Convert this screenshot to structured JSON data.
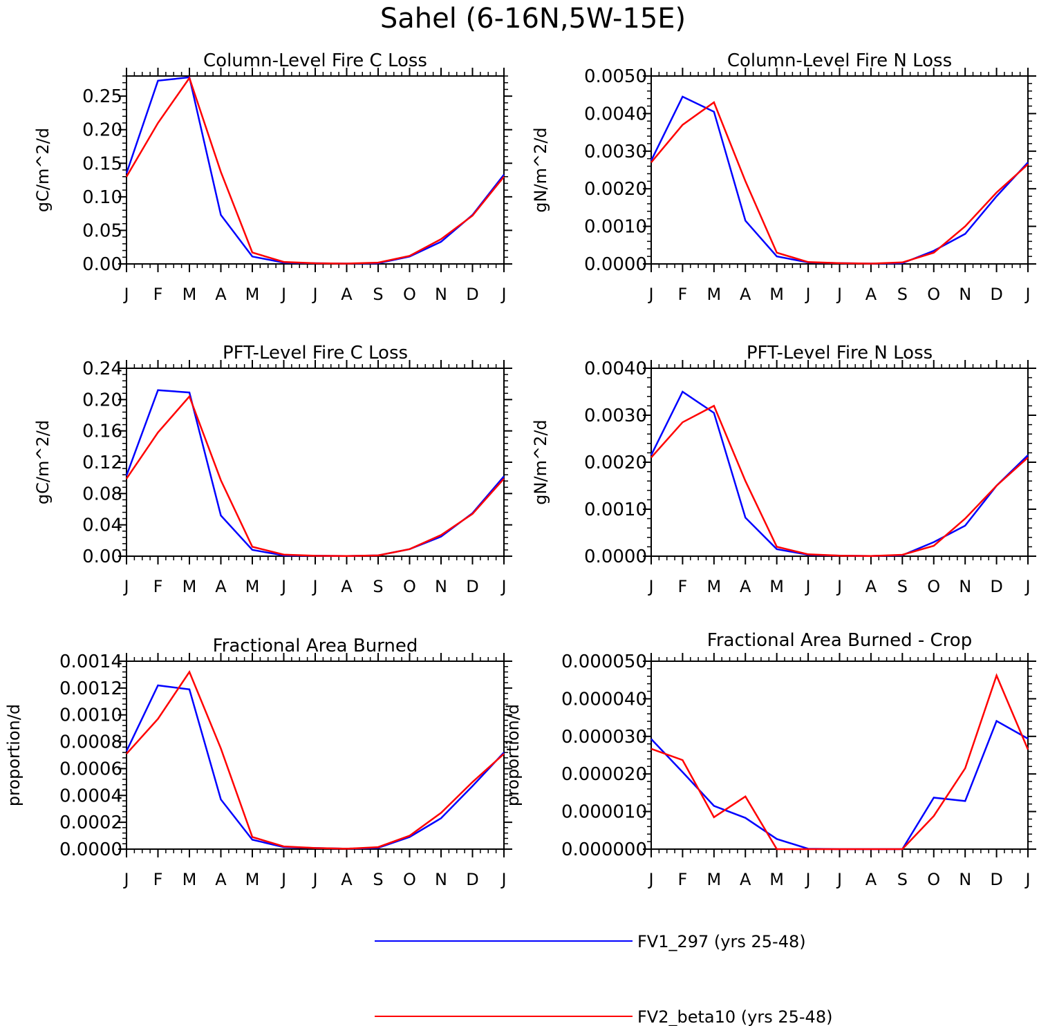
{
  "figure_title": "Sahel (6-16N,5W-15E)",
  "legend": [
    {
      "label": "FV1_297 (yrs 25-48)",
      "color": "#0000ff"
    },
    {
      "label": "FV2_beta10 (yrs 25-48)",
      "color": "#ff0000"
    }
  ],
  "chart_data": [
    {
      "type": "line",
      "title": "Column-Level Fire C Loss",
      "ylabel": "gC/m^2/d",
      "categories": [
        "J",
        "F",
        "M",
        "A",
        "M",
        "J",
        "J",
        "A",
        "S",
        "O",
        "N",
        "D",
        "J"
      ],
      "ylim": [
        0,
        0.28
      ],
      "yticks": [
        0,
        0.05,
        0.1,
        0.15,
        0.2,
        0.25
      ],
      "ytick_labels": [
        "0.00",
        "0.05",
        "0.10",
        "0.15",
        "0.20",
        "0.25"
      ],
      "series": [
        {
          "name": "FV1_297 (yrs 25-48)",
          "color": "#0000ff",
          "values": [
            0.135,
            0.273,
            0.278,
            0.073,
            0.011,
            0.002,
            0.001,
            0.0005,
            0.001,
            0.011,
            0.033,
            0.073,
            0.133
          ]
        },
        {
          "name": "FV2_beta10 (yrs 25-48)",
          "color": "#ff0000",
          "values": [
            0.13,
            0.21,
            0.277,
            0.137,
            0.017,
            0.003,
            0.001,
            0.0005,
            0.002,
            0.012,
            0.037,
            0.072,
            0.13
          ]
        }
      ]
    },
    {
      "type": "line",
      "title": "Column-Level Fire N Loss",
      "ylabel": "gN/m^2/d",
      "categories": [
        "J",
        "F",
        "M",
        "A",
        "M",
        "J",
        "J",
        "A",
        "S",
        "O",
        "N",
        "D",
        "J"
      ],
      "ylim": [
        0,
        0.005
      ],
      "yticks": [
        0,
        0.001,
        0.002,
        0.003,
        0.004,
        0.005
      ],
      "ytick_labels": [
        "0.0000",
        "0.0010",
        "0.0020",
        "0.0030",
        "0.0040",
        "0.0050"
      ],
      "series": [
        {
          "name": "FV1_297 (yrs 25-48)",
          "color": "#0000ff",
          "values": [
            0.00275,
            0.00445,
            0.00405,
            0.00115,
            0.0002,
            4e-05,
            2e-05,
            1e-05,
            2e-05,
            0.00035,
            0.0008,
            0.0018,
            0.0027
          ]
        },
        {
          "name": "FV2_beta10 (yrs 25-48)",
          "color": "#ff0000",
          "values": [
            0.0027,
            0.0037,
            0.0043,
            0.0022,
            0.0003,
            5e-05,
            2e-05,
            1e-05,
            4e-05,
            0.0003,
            0.001,
            0.0019,
            0.00265
          ]
        }
      ]
    },
    {
      "type": "line",
      "title": "PFT-Level Fire C Loss",
      "ylabel": "gC/m^2/d",
      "categories": [
        "J",
        "F",
        "M",
        "A",
        "M",
        "J",
        "J",
        "A",
        "S",
        "O",
        "N",
        "D",
        "J"
      ],
      "ylim": [
        0,
        0.24
      ],
      "yticks": [
        0,
        0.04,
        0.08,
        0.12,
        0.16,
        0.2,
        0.24
      ],
      "ytick_labels": [
        "0.00",
        "0.04",
        "0.08",
        "0.12",
        "0.16",
        "0.20",
        "0.24"
      ],
      "series": [
        {
          "name": "FV1_297 (yrs 25-48)",
          "color": "#0000ff",
          "values": [
            0.103,
            0.212,
            0.209,
            0.052,
            0.008,
            0.001,
            0.0005,
            0.0003,
            0.001,
            0.009,
            0.025,
            0.055,
            0.102
          ]
        },
        {
          "name": "FV2_beta10 (yrs 25-48)",
          "color": "#ff0000",
          "values": [
            0.099,
            0.158,
            0.204,
            0.097,
            0.012,
            0.002,
            0.0005,
            0.0003,
            0.001,
            0.009,
            0.027,
            0.054,
            0.099
          ]
        }
      ]
    },
    {
      "type": "line",
      "title": "PFT-Level Fire N Loss",
      "ylabel": "gN/m^2/d",
      "categories": [
        "J",
        "F",
        "M",
        "A",
        "M",
        "J",
        "J",
        "A",
        "S",
        "O",
        "N",
        "D",
        "J"
      ],
      "ylim": [
        0,
        0.004
      ],
      "yticks": [
        0,
        0.001,
        0.002,
        0.003,
        0.004
      ],
      "ytick_labels": [
        "0.0000",
        "0.0010",
        "0.0020",
        "0.0030",
        "0.0040"
      ],
      "series": [
        {
          "name": "FV1_297 (yrs 25-48)",
          "color": "#0000ff",
          "values": [
            0.00215,
            0.0035,
            0.00305,
            0.00082,
            0.00015,
            3e-05,
            1e-05,
            5e-06,
            2e-05,
            0.0003,
            0.00065,
            0.0015,
            0.00215
          ]
        },
        {
          "name": "FV2_beta10 (yrs 25-48)",
          "color": "#ff0000",
          "values": [
            0.0021,
            0.00285,
            0.0032,
            0.0016,
            0.0002,
            4e-05,
            1e-05,
            5e-06,
            3e-05,
            0.00022,
            0.0008,
            0.0015,
            0.0021
          ]
        }
      ]
    },
    {
      "type": "line",
      "title": "Fractional Area Burned",
      "ylabel": "proportion/d",
      "categories": [
        "J",
        "F",
        "M",
        "A",
        "M",
        "J",
        "J",
        "A",
        "S",
        "O",
        "N",
        "D",
        "J"
      ],
      "ylim": [
        0,
        0.0014
      ],
      "yticks": [
        0,
        0.0002,
        0.0004,
        0.0006,
        0.0008,
        0.001,
        0.0012,
        0.0014
      ],
      "ytick_labels": [
        "0.0000",
        "0.0002",
        "0.0004",
        "0.0006",
        "0.0008",
        "0.0010",
        "0.0012",
        "0.0014"
      ],
      "series": [
        {
          "name": "FV1_297 (yrs 25-48)",
          "color": "#0000ff",
          "values": [
            0.00073,
            0.00122,
            0.00119,
            0.00037,
            7e-05,
            1.5e-05,
            8e-06,
            3e-06,
            1e-05,
            9e-05,
            0.00023,
            0.00047,
            0.00072
          ]
        },
        {
          "name": "FV2_beta10 (yrs 25-48)",
          "color": "#ff0000",
          "values": [
            0.00071,
            0.00097,
            0.00132,
            0.00075,
            9e-05,
            2e-05,
            8e-06,
            3e-06,
            1.5e-05,
            0.0001,
            0.00027,
            0.0005,
            0.00071
          ]
        }
      ]
    },
    {
      "type": "line",
      "title": "Fractional Area Burned - Crop",
      "ylabel": "proportion/d",
      "categories": [
        "J",
        "F",
        "M",
        "A",
        "M",
        "J",
        "J",
        "A",
        "S",
        "O",
        "N",
        "D",
        "J"
      ],
      "ylim": [
        0,
        5e-05
      ],
      "yticks": [
        0,
        1e-05,
        2e-05,
        3e-05,
        4e-05,
        5e-05
      ],
      "ytick_labels": [
        "0.000000",
        "0.000010",
        "0.000020",
        "0.000030",
        "0.000040",
        "0.000050"
      ],
      "series": [
        {
          "name": "FV1_297 (yrs 25-48)",
          "color": "#0000ff",
          "values": [
            2.93e-05,
            2.05e-05,
            1.15e-05,
            8.3e-06,
            2.7e-06,
            1e-07,
            0.0,
            0.0,
            0.0,
            1.37e-05,
            1.28e-05,
            3.41e-05,
            2.94e-05
          ]
        },
        {
          "name": "FV2_beta10 (yrs 25-48)",
          "color": "#ff0000",
          "values": [
            2.67e-05,
            2.37e-05,
            8.5e-06,
            1.4e-05,
            0.0,
            0.0,
            0.0,
            0.0,
            0.0,
            8.8e-06,
            2.15e-05,
            4.62e-05,
            2.65e-05
          ]
        }
      ]
    }
  ]
}
